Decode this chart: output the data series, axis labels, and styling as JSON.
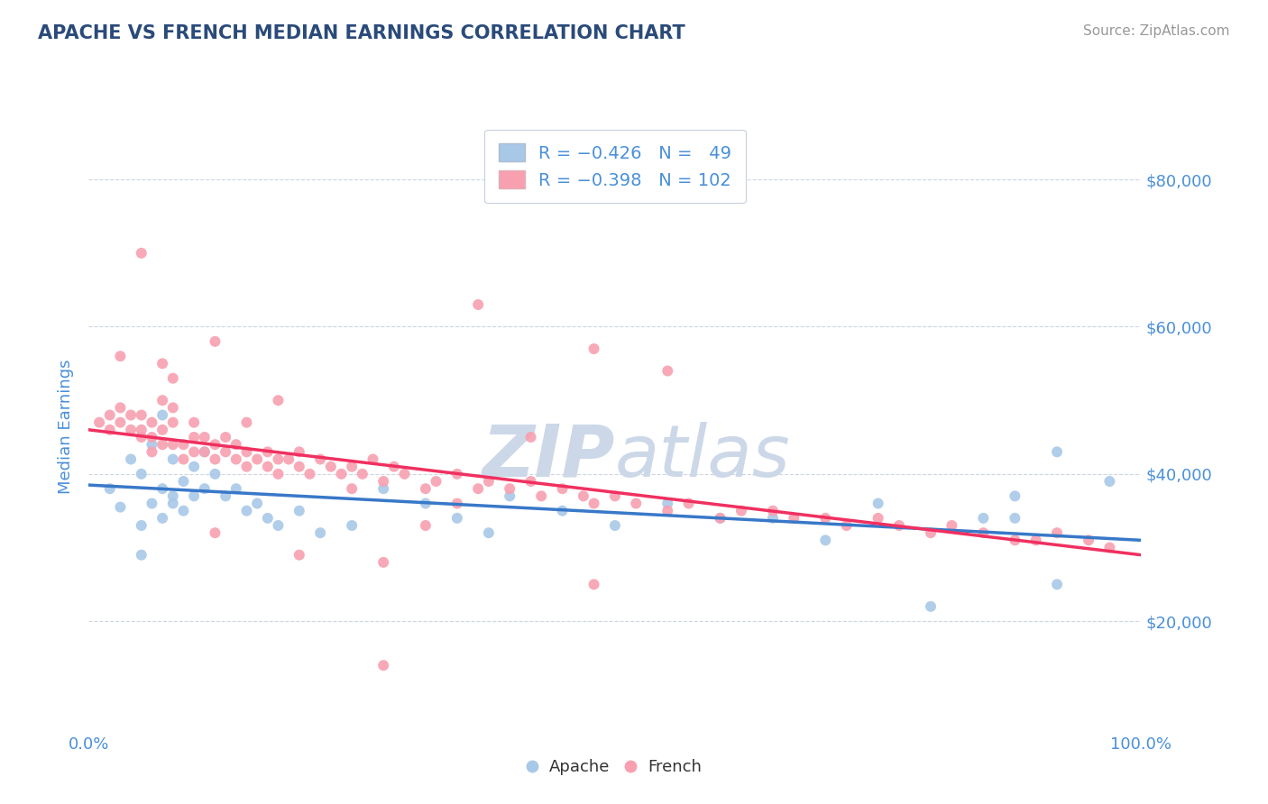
{
  "title": "APACHE VS FRENCH MEDIAN EARNINGS CORRELATION CHART",
  "source_text": "Source: ZipAtlas.com",
  "ylabel": "Median Earnings",
  "x_min": 0.0,
  "x_max": 1.0,
  "y_min": 5000,
  "y_max": 88000,
  "yticks": [
    20000,
    40000,
    60000,
    80000
  ],
  "ytick_labels": [
    "$20,000",
    "$40,000",
    "$60,000",
    "$80,000"
  ],
  "xticks": [
    0.0,
    1.0
  ],
  "xtick_labels": [
    "0.0%",
    "100.0%"
  ],
  "apache_color": "#a8c8e8",
  "french_color": "#f8a0b0",
  "apache_line_color": "#3878c8",
  "french_line_color": "#f03060",
  "title_color": "#2a4a7a",
  "tick_label_color": "#4a90d9",
  "source_color": "#999999",
  "watermark_color": "#ccd8e8",
  "apache_line_x0": 0.0,
  "apache_line_y0": 38500,
  "apache_line_x1": 1.0,
  "apache_line_y1": 31000,
  "french_line_x0": 0.0,
  "french_line_y0": 46000,
  "french_line_x1": 1.0,
  "french_line_y1": 29000,
  "apache_points_x": [
    0.02,
    0.03,
    0.04,
    0.05,
    0.05,
    0.06,
    0.06,
    0.07,
    0.07,
    0.08,
    0.08,
    0.09,
    0.09,
    0.1,
    0.1,
    0.11,
    0.11,
    0.12,
    0.13,
    0.14,
    0.15,
    0.16,
    0.17,
    0.18,
    0.2,
    0.22,
    0.25,
    0.28,
    0.32,
    0.35,
    0.38,
    0.4,
    0.45,
    0.5,
    0.55,
    0.6,
    0.65,
    0.7,
    0.75,
    0.8,
    0.85,
    0.88,
    0.92,
    0.97,
    0.05,
    0.07,
    0.08,
    0.88,
    0.92
  ],
  "apache_points_y": [
    38000,
    35500,
    42000,
    33000,
    40000,
    44000,
    36000,
    48000,
    38000,
    37000,
    42000,
    39000,
    35000,
    41000,
    37000,
    43000,
    38000,
    40000,
    37000,
    38000,
    35000,
    36000,
    34000,
    33000,
    35000,
    32000,
    33000,
    38000,
    36000,
    34000,
    32000,
    37000,
    35000,
    33000,
    36000,
    34000,
    34000,
    31000,
    36000,
    22000,
    34000,
    34000,
    43000,
    39000,
    29000,
    34000,
    36000,
    37000,
    25000
  ],
  "french_points_x": [
    0.01,
    0.02,
    0.02,
    0.03,
    0.03,
    0.04,
    0.04,
    0.05,
    0.05,
    0.06,
    0.06,
    0.07,
    0.07,
    0.08,
    0.08,
    0.09,
    0.09,
    0.1,
    0.1,
    0.11,
    0.11,
    0.12,
    0.12,
    0.13,
    0.13,
    0.14,
    0.14,
    0.15,
    0.15,
    0.16,
    0.17,
    0.17,
    0.18,
    0.18,
    0.19,
    0.2,
    0.2,
    0.21,
    0.22,
    0.23,
    0.24,
    0.25,
    0.26,
    0.27,
    0.28,
    0.29,
    0.3,
    0.32,
    0.33,
    0.35,
    0.37,
    0.38,
    0.4,
    0.42,
    0.43,
    0.45,
    0.47,
    0.48,
    0.5,
    0.52,
    0.55,
    0.57,
    0.6,
    0.62,
    0.65,
    0.67,
    0.7,
    0.72,
    0.75,
    0.77,
    0.8,
    0.82,
    0.85,
    0.88,
    0.9,
    0.92,
    0.95,
    0.97,
    0.37,
    0.48,
    0.55,
    0.32,
    0.2,
    0.35,
    0.28,
    0.12,
    0.18,
    0.42,
    0.25,
    0.15,
    0.08,
    0.05,
    0.07,
    0.1,
    0.28,
    0.48,
    0.12,
    0.07,
    0.03,
    0.05,
    0.06,
    0.08
  ],
  "french_points_y": [
    47000,
    48000,
    46000,
    49000,
    47000,
    48000,
    46000,
    46000,
    48000,
    45000,
    47000,
    46000,
    44000,
    47000,
    44000,
    44000,
    42000,
    43000,
    45000,
    43000,
    45000,
    44000,
    42000,
    43000,
    45000,
    44000,
    42000,
    43000,
    41000,
    42000,
    43000,
    41000,
    42000,
    40000,
    42000,
    41000,
    43000,
    40000,
    42000,
    41000,
    40000,
    41000,
    40000,
    42000,
    39000,
    41000,
    40000,
    38000,
    39000,
    40000,
    38000,
    39000,
    38000,
    39000,
    37000,
    38000,
    37000,
    36000,
    37000,
    36000,
    35000,
    36000,
    34000,
    35000,
    35000,
    34000,
    34000,
    33000,
    34000,
    33000,
    32000,
    33000,
    32000,
    31000,
    31000,
    32000,
    31000,
    30000,
    63000,
    57000,
    54000,
    33000,
    29000,
    36000,
    14000,
    58000,
    50000,
    45000,
    38000,
    47000,
    53000,
    70000,
    55000,
    47000,
    28000,
    25000,
    32000,
    50000,
    56000,
    45000,
    43000,
    49000
  ]
}
